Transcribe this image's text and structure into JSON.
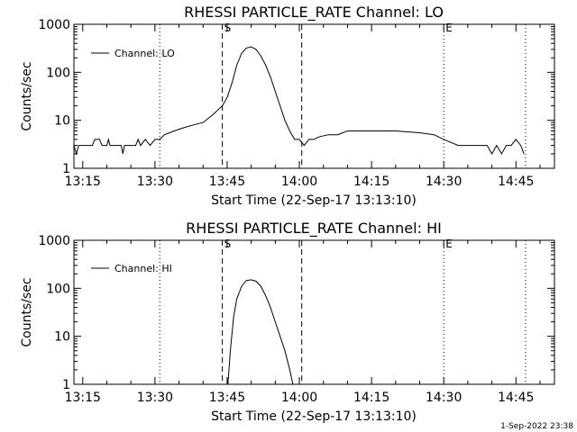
{
  "footer": "1-Sep-2022 23:38",
  "chart_data": [
    {
      "type": "line",
      "title": "RHESSI PARTICLE_RATE Channel: LO",
      "xlabel": "Start Time (22-Sep-17 13:13:10)",
      "ylabel": "Counts/sec",
      "y_scale": "log",
      "ylim": [
        1,
        1000
      ],
      "xlim": [
        "13:13:10",
        "14:53:00"
      ],
      "x_ticks": [
        "13:15",
        "13:30",
        "13:45",
        "14:00",
        "14:15",
        "14:30",
        "14:45"
      ],
      "y_ticks": [
        "1",
        "10",
        "100",
        "1000"
      ],
      "legend": {
        "entry": "Channel: LO",
        "placement": "top-left"
      },
      "markers": [
        {
          "label": "",
          "time": "13:31:00",
          "style": "dotted"
        },
        {
          "label": "S",
          "time": "13:44:00",
          "style": "dashed"
        },
        {
          "label": "",
          "time": "14:00:30",
          "style": "dashed"
        },
        {
          "label": "E",
          "time": "14:30:00",
          "style": "dotted"
        },
        {
          "label": "",
          "time": "14:47:00",
          "style": "dotted"
        }
      ],
      "series": [
        {
          "name": "Channel: LO",
          "color": "#000000",
          "points": [
            [
              "13:13:10",
              3
            ],
            [
              "13:13:40",
              2
            ],
            [
              "13:14:10",
              3
            ],
            [
              "13:16:00",
              3
            ],
            [
              "13:17:00",
              3
            ],
            [
              "13:17:30",
              4
            ],
            [
              "13:18:30",
              4
            ],
            [
              "13:19:00",
              3
            ],
            [
              "13:20:00",
              3
            ],
            [
              "13:20:20",
              4
            ],
            [
              "13:20:40",
              3
            ],
            [
              "13:23:00",
              3
            ],
            [
              "13:23:20",
              2
            ],
            [
              "13:23:40",
              3
            ],
            [
              "13:26:00",
              3
            ],
            [
              "13:26:30",
              4
            ],
            [
              "13:27:00",
              3
            ],
            [
              "13:28:00",
              4
            ],
            [
              "13:29:00",
              3
            ],
            [
              "13:30:00",
              4
            ],
            [
              "13:31:00",
              4
            ],
            [
              "13:32:00",
              5
            ],
            [
              "13:34:00",
              6
            ],
            [
              "13:36:00",
              7
            ],
            [
              "13:38:00",
              8
            ],
            [
              "13:40:00",
              9
            ],
            [
              "13:42:00",
              13
            ],
            [
              "13:44:00",
              20
            ],
            [
              "13:45:00",
              30
            ],
            [
              "13:46:00",
              60
            ],
            [
              "13:47:00",
              140
            ],
            [
              "13:48:00",
              250
            ],
            [
              "13:49:00",
              320
            ],
            [
              "13:50:00",
              340
            ],
            [
              "13:51:00",
              300
            ],
            [
              "13:52:00",
              220
            ],
            [
              "13:53:00",
              140
            ],
            [
              "13:54:00",
              80
            ],
            [
              "13:55:00",
              40
            ],
            [
              "13:56:00",
              20
            ],
            [
              "13:57:00",
              10
            ],
            [
              "13:58:00",
              6
            ],
            [
              "13:59:00",
              4
            ],
            [
              "14:00:00",
              4
            ],
            [
              "14:01:00",
              3
            ],
            [
              "14:02:00",
              4
            ],
            [
              "14:03:00",
              4
            ],
            [
              "14:04:00",
              4.5
            ],
            [
              "14:06:00",
              5
            ],
            [
              "14:08:00",
              5
            ],
            [
              "14:10:00",
              6
            ],
            [
              "14:20:00",
              6
            ],
            [
              "14:25:00",
              5.5
            ],
            [
              "14:28:00",
              5
            ],
            [
              "14:30:00",
              4
            ],
            [
              "14:33:00",
              3
            ],
            [
              "14:36:00",
              3
            ],
            [
              "14:39:00",
              3
            ],
            [
              "14:40:00",
              2
            ],
            [
              "14:41:00",
              3
            ],
            [
              "14:42:00",
              2
            ],
            [
              "14:43:00",
              3
            ],
            [
              "14:44:00",
              3
            ],
            [
              "14:45:00",
              4
            ],
            [
              "14:46:00",
              3
            ],
            [
              "14:46:40",
              2
            ]
          ]
        }
      ]
    },
    {
      "type": "line",
      "title": "RHESSI PARTICLE_RATE Channel: HI",
      "xlabel": "Start Time (22-Sep-17 13:13:10)",
      "ylabel": "Counts/sec",
      "y_scale": "log",
      "ylim": [
        1,
        1000
      ],
      "xlim": [
        "13:13:10",
        "14:53:00"
      ],
      "x_ticks": [
        "13:15",
        "13:30",
        "13:45",
        "14:00",
        "14:15",
        "14:30",
        "14:45"
      ],
      "y_ticks": [
        "1",
        "10",
        "100",
        "1000"
      ],
      "legend": {
        "entry": "Channel: HI",
        "placement": "top-left"
      },
      "markers": [
        {
          "label": "",
          "time": "13:31:00",
          "style": "dotted"
        },
        {
          "label": "S",
          "time": "13:44:00",
          "style": "dashed"
        },
        {
          "label": "",
          "time": "14:00:30",
          "style": "dashed"
        },
        {
          "label": "E",
          "time": "14:30:00",
          "style": "dotted"
        },
        {
          "label": "",
          "time": "14:47:00",
          "style": "dotted"
        }
      ],
      "series": [
        {
          "name": "Channel: HI",
          "color": "#000000",
          "points": [
            [
              "13:45:10",
              1
            ],
            [
              "13:45:40",
              5
            ],
            [
              "13:46:20",
              25
            ],
            [
              "13:47:00",
              60
            ],
            [
              "13:48:00",
              110
            ],
            [
              "13:49:00",
              145
            ],
            [
              "13:50:00",
              150
            ],
            [
              "13:51:00",
              140
            ],
            [
              "13:52:00",
              110
            ],
            [
              "13:53:00",
              70
            ],
            [
              "13:54:00",
              40
            ],
            [
              "13:55:00",
              20
            ],
            [
              "13:56:00",
              10
            ],
            [
              "13:57:00",
              5
            ],
            [
              "13:58:00",
              2
            ],
            [
              "13:58:40",
              1
            ]
          ]
        }
      ]
    }
  ]
}
